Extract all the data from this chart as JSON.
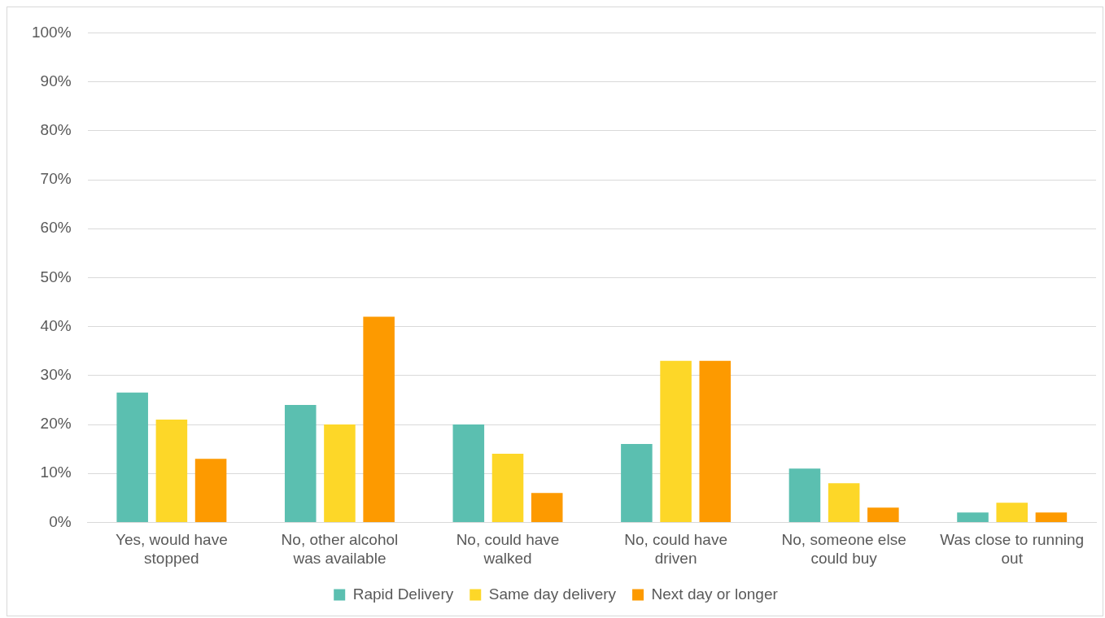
{
  "chart_data": {
    "type": "bar",
    "categories": [
      "Yes, would have stopped",
      "No, other alcohol was available",
      "No, could have walked",
      "No, could have driven",
      "No, someone else could buy",
      "Was close to running out"
    ],
    "series": [
      {
        "name": "Rapid Delivery",
        "color": "#5bbfb0",
        "values": [
          26.5,
          24,
          20,
          16,
          11,
          2
        ]
      },
      {
        "name": "Same day delivery",
        "color": "#fdd728",
        "values": [
          21,
          20,
          14,
          33,
          8,
          4
        ]
      },
      {
        "name": "Next day or longer",
        "color": "#fd9a00",
        "values": [
          13,
          42,
          6,
          33,
          3,
          2
        ]
      }
    ],
    "ylim": [
      0,
      100
    ],
    "yticks": [
      {
        "value": 0,
        "label": "0%"
      },
      {
        "value": 10,
        "label": "10%"
      },
      {
        "value": 20,
        "label": "20%"
      },
      {
        "value": 30,
        "label": "30%"
      },
      {
        "value": 40,
        "label": "40%"
      },
      {
        "value": 50,
        "label": "50%"
      },
      {
        "value": 60,
        "label": "60%"
      },
      {
        "value": 70,
        "label": "70%"
      },
      {
        "value": 80,
        "label": "80%"
      },
      {
        "value": 90,
        "label": "90%"
      },
      {
        "value": 100,
        "label": "100%"
      }
    ],
    "grid": "y",
    "legend": "bottom"
  }
}
